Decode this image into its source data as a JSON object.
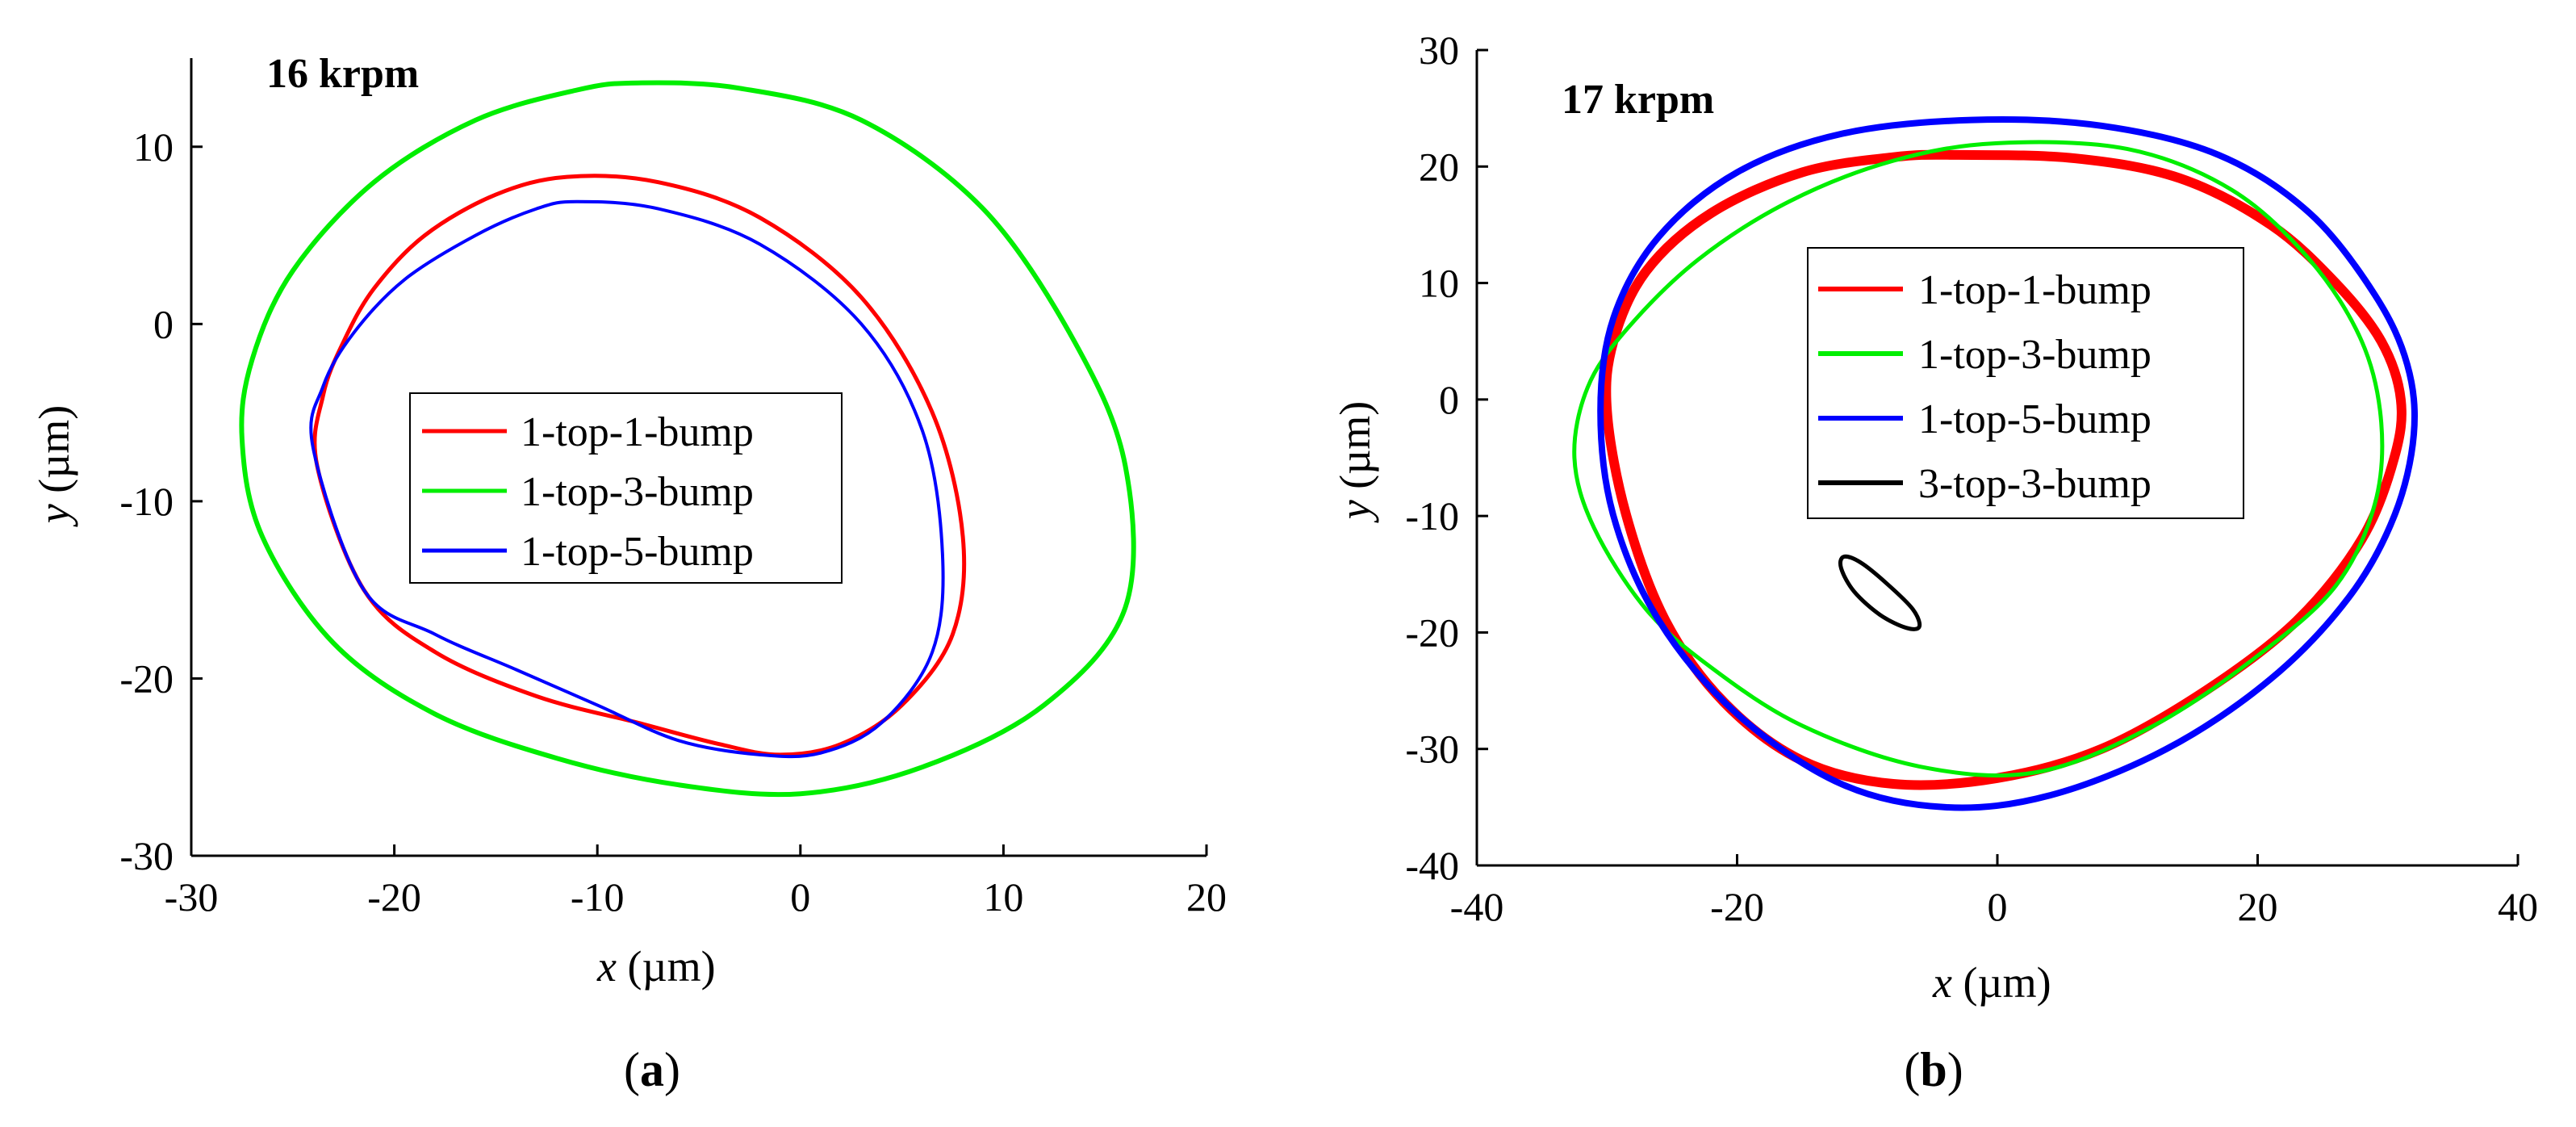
{
  "colors": {
    "red": "#ff0000",
    "green": "#00ee00",
    "blue": "#0000ff",
    "black": "#000000"
  },
  "panels": [
    {
      "caption_open": "(",
      "caption_letter": "a",
      "caption_close": ")",
      "x_label_var": "x",
      "x_label_unit": " (µm)",
      "y_label_var": "y",
      "y_label_unit": " (µm)"
    },
    {
      "caption_open": "(",
      "caption_letter": "b",
      "caption_close": ")",
      "x_label_var": "x",
      "x_label_unit": " (µm)",
      "y_label_var": "y",
      "y_label_unit": " (µm)"
    }
  ],
  "chart_data": [
    {
      "type": "line",
      "title": "16 krpm",
      "xlabel": "x (µm)",
      "ylabel": "y (µm)",
      "xlim": [
        -30,
        20
      ],
      "ylim": [
        -30,
        15
      ],
      "xticks": [
        -30,
        -20,
        -10,
        0,
        10,
        20
      ],
      "yticks": [
        -30,
        -20,
        -10,
        0,
        10
      ],
      "legend_position": "center",
      "series": [
        {
          "name": "1-top-1-bump",
          "color": "#ff0000",
          "x": [
            -11.5,
            -7,
            -2,
            3,
            6.5,
            8,
            7.5,
            5,
            2,
            -1,
            -4,
            -8,
            -13,
            -18,
            -21.5,
            -23.8,
            -23.5,
            -22.5,
            -21,
            -18.5,
            -15,
            -11.5
          ],
          "y": [
            8.3,
            8,
            6,
            1.5,
            -5,
            -12,
            -17.5,
            -21.5,
            -23.7,
            -24.3,
            -23.7,
            -22.5,
            -21,
            -18.5,
            -15,
            -8,
            -4,
            -1,
            2,
            5,
            7.3,
            8.3
          ]
        },
        {
          "name": "1-top-3-bump",
          "color": "#00ee00",
          "x": [
            -8,
            -3,
            3,
            9,
            13.5,
            16,
            16,
            12,
            6,
            0,
            -6,
            -12,
            -18,
            -23,
            -26.5,
            -27.5,
            -27,
            -25,
            -21,
            -16,
            -11,
            -8
          ],
          "y": [
            13.6,
            13.3,
            11.5,
            6.5,
            -1,
            -8,
            -16,
            -21.5,
            -25,
            -26.5,
            -26,
            -24.5,
            -22,
            -18,
            -12,
            -6.5,
            -2,
            3,
            8,
            11.5,
            13.2,
            13.6
          ]
        },
        {
          "name": "1-top-5-bump",
          "color": "#0000ff",
          "x": [
            -11,
            -7,
            -2,
            3,
            6,
            7,
            6.5,
            4,
            1,
            -2,
            -6,
            -10,
            -14,
            -18,
            -21.5,
            -24,
            -23.5,
            -22,
            -19.5,
            -16,
            -13,
            -11
          ],
          "y": [
            6.9,
            6.5,
            4.5,
            0,
            -6,
            -13,
            -18.5,
            -22.5,
            -24.2,
            -24.3,
            -23.5,
            -21.5,
            -19.5,
            -17.5,
            -15,
            -7,
            -3.5,
            -0.5,
            2.5,
            5,
            6.5,
            6.9
          ]
        }
      ]
    },
    {
      "type": "line",
      "title": "17 krpm",
      "xlabel": "x (µm)",
      "ylabel": "y (µm)",
      "xlim": [
        -40,
        40
      ],
      "ylim": [
        -40,
        30
      ],
      "xticks": [
        -40,
        -20,
        0,
        20,
        40
      ],
      "yticks": [
        -40,
        -30,
        -20,
        -10,
        0,
        10,
        20,
        30
      ],
      "legend_position": "center",
      "series": [
        {
          "name": "1-top-1-bump",
          "color": "#ff0000",
          "x": [
            -3,
            6,
            14,
            21,
            26,
            29.5,
            31,
            30.5,
            28,
            23,
            16,
            8,
            0,
            -8,
            -15,
            -21,
            -25.5,
            -28.5,
            -30,
            -29.5,
            -27,
            -22,
            -15,
            -8,
            -3
          ],
          "y": [
            21,
            20.7,
            19,
            15,
            10,
            5,
            0,
            -5,
            -12,
            -19,
            -25,
            -30,
            -32.5,
            -33,
            -31,
            -26,
            -19,
            -10,
            -1,
            5,
            11,
            16,
            19.5,
            20.8,
            21
          ]
        },
        {
          "name": "1-top-3-bump",
          "color": "#00ee00",
          "x": [
            0,
            10,
            18,
            24,
            28,
            29.5,
            29,
            26,
            20,
            12,
            3,
            -6,
            -15,
            -22,
            -27,
            -31,
            -32.5,
            -31.5,
            -28.5,
            -23,
            -16,
            -8,
            0
          ],
          "y": [
            22,
            21.5,
            18,
            12,
            5,
            -2,
            -9,
            -16,
            -22,
            -28,
            -32,
            -31.5,
            -28,
            -23,
            -18,
            -11,
            -5,
            1,
            6,
            12,
            17,
            20.5,
            22
          ]
        },
        {
          "name": "1-top-5-bump",
          "color": "#0000ff",
          "x": [
            -2,
            8,
            17,
            24,
            29,
            31.5,
            32,
            30.5,
            27,
            21,
            13,
            4,
            -4,
            -12,
            -20,
            -26,
            -29.5,
            -30.5,
            -29.5,
            -26,
            -20,
            -12,
            -2
          ],
          "y": [
            24,
            23.5,
            21,
            16,
            9,
            3,
            -3,
            -10,
            -17,
            -24,
            -30,
            -34,
            -35,
            -33,
            -27,
            -19,
            -10,
            -1,
            7,
            14,
            19.5,
            22.8,
            24
          ]
        },
        {
          "name": "3-top-3-bump",
          "color": "#000000",
          "x": [
            -11.8,
            -10.5,
            -8.5,
            -6.5,
            -6,
            -7,
            -9,
            -11,
            -12,
            -11.8
          ],
          "y": [
            -13.5,
            -14,
            -15.8,
            -18,
            -19.5,
            -19.6,
            -18.5,
            -16.5,
            -14.5,
            -13.5
          ]
        }
      ]
    }
  ]
}
